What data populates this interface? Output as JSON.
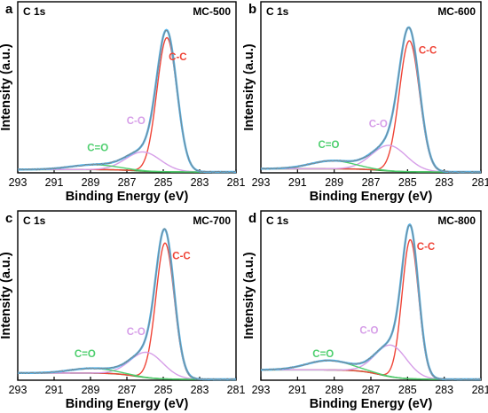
{
  "colors": {
    "raw": "#7f7f7f",
    "envelope": "#56b4e9",
    "cc": "#ef4437",
    "co": "#d69ee8",
    "c_double_o": "#4fcf6f",
    "background": "#3f9a3f"
  },
  "chart_data": [
    {
      "type": "line",
      "panel_letter": "a",
      "core_level": "C 1s",
      "sample": "MC-500",
      "xlabel": "Binding Energy (eV)",
      "ylabel": "Intensity (a.u.)",
      "xlim": [
        293,
        281
      ],
      "x_reversed": true,
      "x_ticks": [
        "293",
        "291",
        "289",
        "287",
        "285",
        "283",
        "281"
      ],
      "y_ticks": "none",
      "ylim": [
        0,
        1.06
      ],
      "annotations": [
        {
          "label": "C-C",
          "x": 284.2,
          "y": 0.7,
          "color": "cc"
        },
        {
          "label": "C-O",
          "x": 286.5,
          "y": 0.3,
          "color": "co"
        },
        {
          "label": "C=O",
          "x": 288.6,
          "y": 0.13,
          "color": "c_double_o"
        }
      ],
      "peaks": [
        {
          "label": "C-C",
          "center": 284.8,
          "amplitude": 0.84,
          "width": 0.55
        },
        {
          "label": "C-O",
          "center": 286.1,
          "amplitude": 0.12,
          "width": 0.95
        },
        {
          "label": "C=O",
          "center": 288.8,
          "amplitude": 0.03,
          "width": 1.3
        }
      ],
      "background": {
        "start_y": 0.015,
        "end_y": 0.0
      }
    },
    {
      "type": "line",
      "panel_letter": "b",
      "core_level": "C 1s",
      "sample": "MC-600",
      "xlabel": "Binding Energy (eV)",
      "ylabel": "Intensity (a.u.)",
      "xlim": [
        293,
        281
      ],
      "x_reversed": true,
      "x_ticks": [
        "293",
        "291",
        "289",
        "287",
        "285",
        "283",
        "281"
      ],
      "y_ticks": "none",
      "ylim": [
        0,
        1.06
      ],
      "annotations": [
        {
          "label": "C-C",
          "x": 283.9,
          "y": 0.74,
          "color": "cc"
        },
        {
          "label": "C-O",
          "x": 286.6,
          "y": 0.28,
          "color": "co"
        },
        {
          "label": "C=O",
          "x": 289.3,
          "y": 0.15,
          "color": "c_double_o"
        }
      ],
      "peaks": [
        {
          "label": "C-C",
          "center": 284.9,
          "amplitude": 0.82,
          "width": 0.55
        },
        {
          "label": "C-O",
          "center": 286.0,
          "amplitude": 0.16,
          "width": 0.95
        },
        {
          "label": "C=O",
          "center": 289.1,
          "amplitude": 0.05,
          "width": 1.2
        }
      ],
      "background": {
        "start_y": 0.02,
        "end_y": 0.0
      }
    },
    {
      "type": "line",
      "panel_letter": "c",
      "core_level": "C 1s",
      "sample": "MC-700",
      "xlabel": "Binding Energy (eV)",
      "ylabel": "Intensity (a.u.)",
      "xlim": [
        293,
        281
      ],
      "x_reversed": true,
      "x_ticks": [
        "293",
        "291",
        "289",
        "287",
        "285",
        "283",
        "281"
      ],
      "y_ticks": "none",
      "ylim": [
        0,
        1.06
      ],
      "annotations": [
        {
          "label": "C-C",
          "x": 284.0,
          "y": 0.76,
          "color": "cc"
        },
        {
          "label": "C-O",
          "x": 286.5,
          "y": 0.28,
          "color": "co"
        },
        {
          "label": "C=O",
          "x": 289.3,
          "y": 0.14,
          "color": "c_double_o"
        }
      ],
      "peaks": [
        {
          "label": "C-C",
          "center": 284.9,
          "amplitude": 0.86,
          "width": 0.5
        },
        {
          "label": "C-O",
          "center": 285.9,
          "amplitude": 0.16,
          "width": 0.9
        },
        {
          "label": "C=O",
          "center": 288.9,
          "amplitude": 0.03,
          "width": 1.2
        }
      ],
      "background": {
        "start_y": 0.04,
        "end_y": 0.0
      }
    },
    {
      "type": "line",
      "panel_letter": "d",
      "core_level": "C 1s",
      "sample": "MC-800",
      "xlabel": "Binding Energy (eV)",
      "ylabel": "Intensity (a.u.)",
      "xlim": [
        293,
        281
      ],
      "x_reversed": true,
      "x_ticks": [
        "293",
        "291",
        "289",
        "287",
        "285",
        "283",
        "281"
      ],
      "y_ticks": "none",
      "ylim": [
        0,
        1.06
      ],
      "annotations": [
        {
          "label": "C-C",
          "x": 284.0,
          "y": 0.82,
          "color": "cc"
        },
        {
          "label": "C-O",
          "x": 287.1,
          "y": 0.29,
          "color": "co"
        },
        {
          "label": "C=O",
          "x": 289.6,
          "y": 0.14,
          "color": "c_double_o"
        }
      ],
      "peaks": [
        {
          "label": "C-C",
          "center": 284.85,
          "amplitude": 0.88,
          "width": 0.45
        },
        {
          "label": "C-O",
          "center": 285.9,
          "amplitude": 0.2,
          "width": 0.85
        },
        {
          "label": "C=O",
          "center": 289.3,
          "amplitude": 0.06,
          "width": 1.2
        }
      ],
      "background": {
        "start_y": 0.06,
        "end_y": 0.0
      }
    }
  ]
}
